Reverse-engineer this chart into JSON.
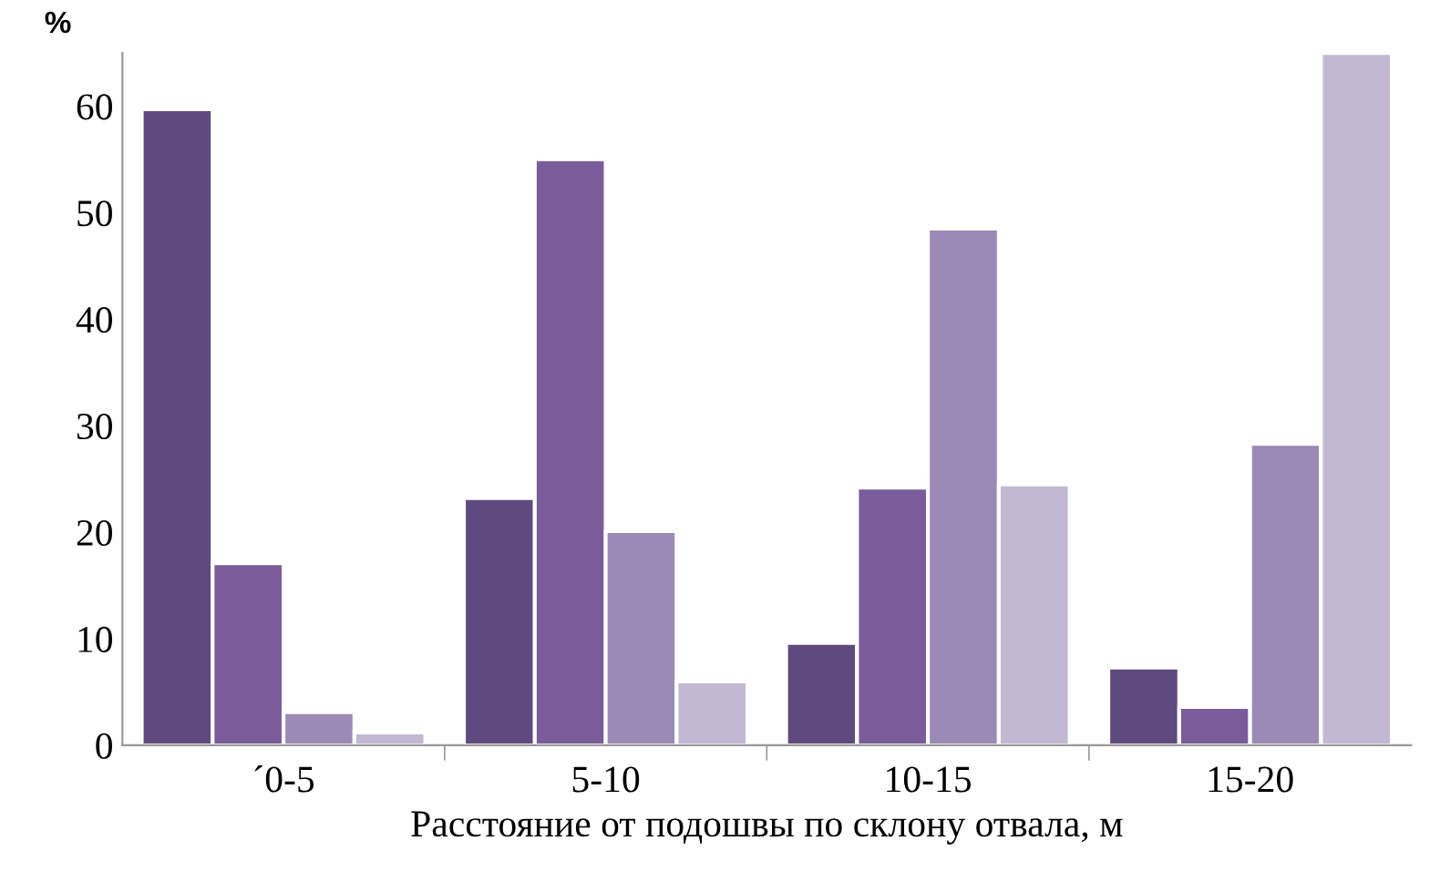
{
  "chart_data": {
    "type": "bar",
    "ylabel": "%",
    "xlabel": "Расстояние от подошвы по склону отвала, м",
    "categories": [
      "´0-5",
      "5-10",
      "10-15",
      "15-20"
    ],
    "series": [
      {
        "color": "#5e4a7e",
        "values": [
          59.7,
          23.2,
          9.6,
          7.3
        ]
      },
      {
        "color": "#7a5c9a",
        "values": [
          17.1,
          55.0,
          24.2,
          3.6
        ]
      },
      {
        "color": "#9b8ab5",
        "values": [
          3.1,
          20.1,
          48.5,
          28.3
        ]
      },
      {
        "color": "#c2b8d3",
        "values": [
          1.2,
          6.0,
          24.5,
          65
        ]
      }
    ],
    "ylim": [
      0,
      65
    ],
    "yticks": [
      0,
      10,
      20,
      30,
      40,
      50,
      60
    ],
    "grid": false,
    "legend": false
  }
}
